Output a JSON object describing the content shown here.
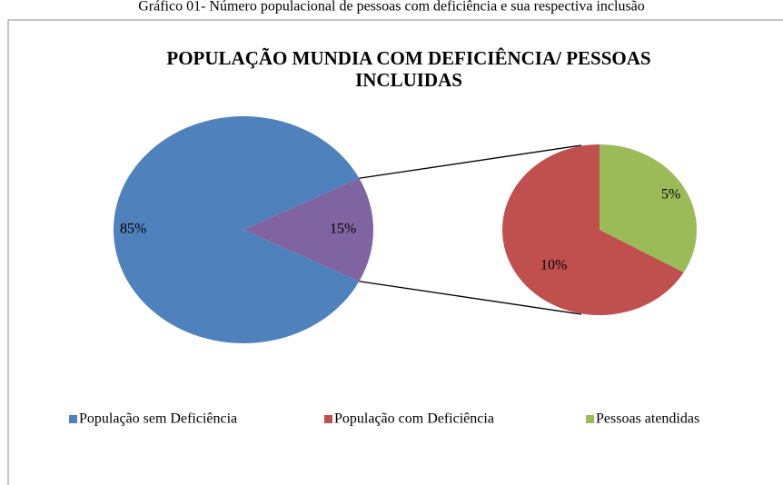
{
  "caption": "Gráfico 01- Número populacional de pessoas com deficiência e sua respectiva inclusão",
  "chart_data": {
    "type": "pie_of_pie",
    "title": [
      "POPULAÇÃO MUNDIA COM DEFICIÊNCIA/ PESSOAS",
      "INCLUIDAS"
    ],
    "categories": [
      "População sem Deficiência",
      "População com Deficiência",
      "Pessoas atendidas"
    ],
    "values": [
      85,
      10,
      5
    ],
    "value_labels": [
      "85%",
      "10%",
      "5%"
    ],
    "colors": [
      "#4f81bd",
      "#c0504d",
      "#9bbb59"
    ],
    "other": {
      "value": 15,
      "label": "15%",
      "color": "#8064a2"
    },
    "legend": "bottom"
  }
}
